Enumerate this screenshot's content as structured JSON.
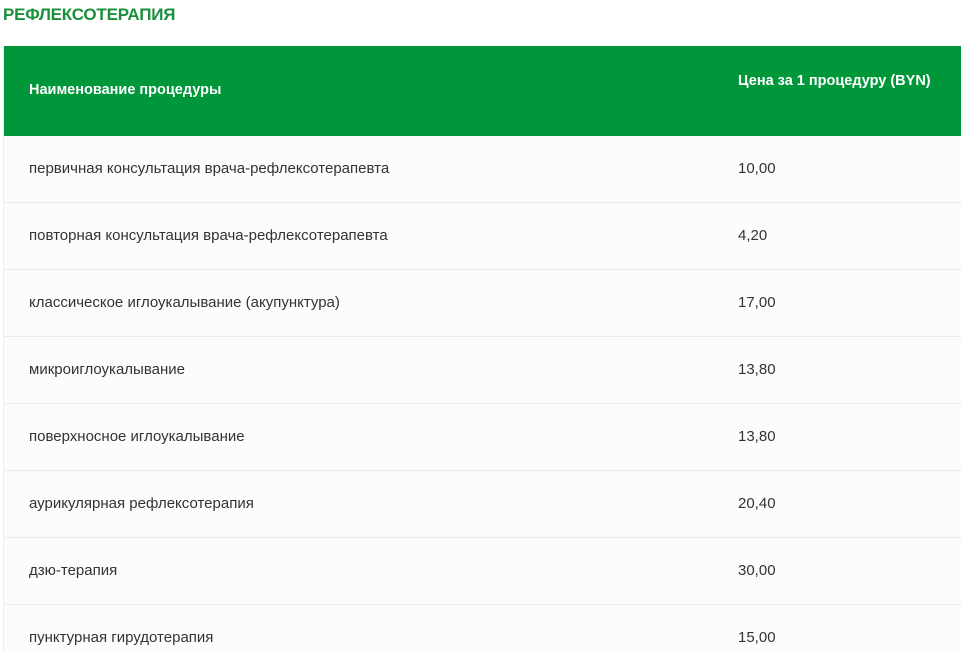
{
  "title": "РЕФЛЕКСОТЕРАПИЯ",
  "colors": {
    "accent": "#00963a",
    "title": "#1a8f3c"
  },
  "table": {
    "headers": [
      "Наименование процедуры",
      "Цена за 1 процедуру (BYN)"
    ],
    "rows": [
      {
        "name": "первичная консультация врача-рефлексотерапевта",
        "price": "10,00"
      },
      {
        "name": "повторная консультация врача-рефлексотерапевта",
        "price": "4,20"
      },
      {
        "name": "классическое иглоукалывание (акупунктура)",
        "price": "17,00"
      },
      {
        "name": "микроиглоукалывание",
        "price": "13,80"
      },
      {
        "name": "поверхносное иглоукалывание",
        "price": "13,80"
      },
      {
        "name": "аурикулярная рефлексотерапия",
        "price": "20,40"
      },
      {
        "name": "дзю-терапия",
        "price": "30,00"
      },
      {
        "name": "пунктурная гирудотерапия",
        "price": "15,00"
      }
    ]
  }
}
